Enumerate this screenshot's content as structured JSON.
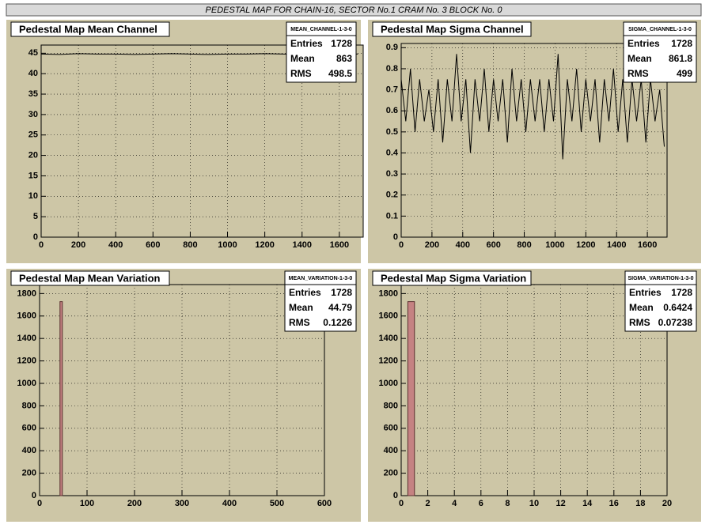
{
  "header": "PEDESTAL MAP FOR CHAIN-16, SECTOR No.1 CRAM No. 3 BLOCK No. 0",
  "chart_data": [
    {
      "type": "line",
      "title": "Pedestal Map Mean Channel",
      "stats": {
        "name": "MEAN_CHANNEL-1-3-0",
        "rows": [
          {
            "label": "Entries",
            "value": 1728
          },
          {
            "label": "Mean",
            "value": 863
          },
          {
            "label": "RMS",
            "value": 498.5
          }
        ]
      },
      "x": [
        0,
        100,
        200,
        300,
        400,
        500,
        600,
        700,
        800,
        900,
        1000,
        1100,
        1200,
        1300,
        1400,
        1500,
        1600,
        1700
      ],
      "values": [
        44.8,
        44.7,
        44.9,
        44.8,
        44.8,
        44.7,
        44.8,
        44.9,
        44.8,
        44.7,
        44.8,
        44.8,
        44.9,
        44.8,
        44.7,
        44.8,
        44.9,
        44.8
      ],
      "color": "#000000",
      "xlim": [
        0,
        1728
      ],
      "ylim": [
        0,
        47
      ],
      "xticks": [
        0,
        200,
        400,
        600,
        800,
        1000,
        1200,
        1400,
        1600
      ],
      "yticks": [
        0,
        5,
        10,
        15,
        20,
        25,
        30,
        35,
        40,
        45
      ],
      "grid": true
    },
    {
      "type": "line",
      "title": "Pedestal Map Sigma Channel",
      "stats": {
        "name": "SIGMA_CHANNEL-1-3-0",
        "rows": [
          {
            "label": "Entries",
            "value": 1728
          },
          {
            "label": "Mean",
            "value": 861.8
          },
          {
            "label": "RMS",
            "value": 499
          }
        ]
      },
      "x": [
        0,
        30,
        60,
        90,
        120,
        150,
        180,
        210,
        240,
        270,
        300,
        330,
        360,
        390,
        420,
        450,
        480,
        510,
        540,
        570,
        600,
        630,
        660,
        690,
        720,
        750,
        780,
        810,
        840,
        870,
        900,
        930,
        960,
        990,
        1020,
        1050,
        1080,
        1110,
        1140,
        1170,
        1200,
        1230,
        1260,
        1290,
        1320,
        1350,
        1380,
        1410,
        1440,
        1470,
        1500,
        1530,
        1560,
        1590,
        1620,
        1650,
        1680,
        1710
      ],
      "values": [
        0.75,
        0.55,
        0.8,
        0.5,
        0.75,
        0.55,
        0.7,
        0.5,
        0.75,
        0.45,
        0.75,
        0.55,
        0.87,
        0.55,
        0.75,
        0.4,
        0.75,
        0.55,
        0.8,
        0.5,
        0.75,
        0.55,
        0.75,
        0.45,
        0.8,
        0.55,
        0.75,
        0.5,
        0.75,
        0.55,
        0.75,
        0.5,
        0.75,
        0.55,
        0.87,
        0.37,
        0.75,
        0.55,
        0.8,
        0.5,
        0.75,
        0.55,
        0.75,
        0.45,
        0.75,
        0.55,
        0.8,
        0.5,
        0.75,
        0.45,
        0.75,
        0.55,
        0.75,
        0.45,
        0.75,
        0.55,
        0.7,
        0.43
      ],
      "color": "#000000",
      "xlim": [
        0,
        1728
      ],
      "ylim": [
        0,
        0.92
      ],
      "xticks": [
        0,
        200,
        400,
        600,
        800,
        1000,
        1200,
        1400,
        1600
      ],
      "yticks": [
        0,
        0.1,
        0.2,
        0.3,
        0.4,
        0.5,
        0.6,
        0.7,
        0.8,
        0.9
      ],
      "grid": true
    },
    {
      "type": "histogram",
      "title": "Pedestal Map Mean Variation",
      "stats": {
        "name": "MEAN_VARIATION-1-3-0",
        "rows": [
          {
            "label": "Entries",
            "value": 1728
          },
          {
            "label": "Mean",
            "value": 44.79
          },
          {
            "label": "RMS",
            "value": 0.1226
          }
        ]
      },
      "bins": [
        43,
        48
      ],
      "values": [
        1728
      ],
      "color": "#c58282",
      "xlim": [
        0,
        600
      ],
      "ylim": [
        0,
        1880
      ],
      "xticks": [
        0,
        100,
        200,
        300,
        400,
        500,
        600
      ],
      "yticks": [
        0,
        200,
        400,
        600,
        800,
        1000,
        1200,
        1400,
        1600,
        1800
      ],
      "grid": true
    },
    {
      "type": "histogram",
      "title": "Pedestal Map Sigma Variation",
      "stats": {
        "name": "SIGMA_VARIATION-1-3-0",
        "rows": [
          {
            "label": "Entries",
            "value": 1728
          },
          {
            "label": "Mean",
            "value": 0.6424
          },
          {
            "label": "RMS",
            "value": 0.07238
          }
        ]
      },
      "bins": [
        0.5,
        1
      ],
      "values": [
        1728
      ],
      "color": "#c58282",
      "xlim": [
        0,
        20
      ],
      "ylim": [
        0,
        1880
      ],
      "xticks": [
        0,
        2,
        4,
        6,
        8,
        10,
        12,
        14,
        16,
        18,
        20
      ],
      "yticks": [
        0,
        200,
        400,
        600,
        800,
        1000,
        1200,
        1400,
        1600,
        1800
      ],
      "grid": true
    }
  ]
}
